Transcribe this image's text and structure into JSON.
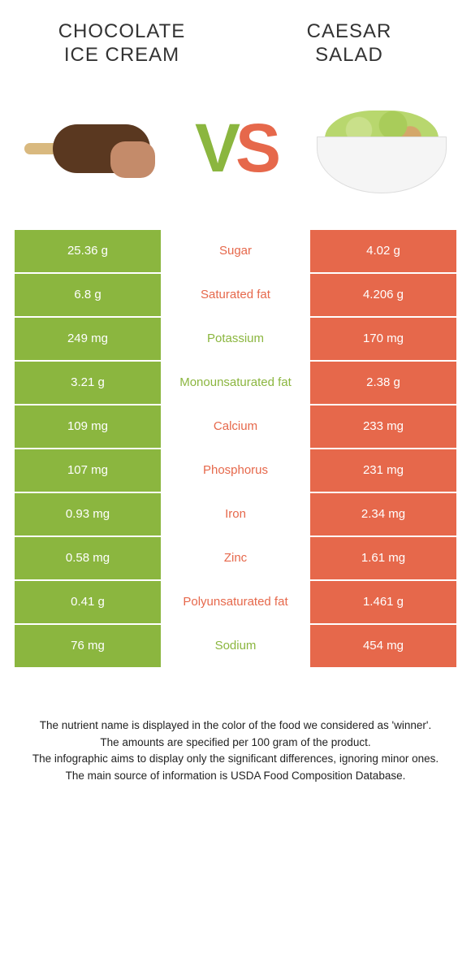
{
  "header": {
    "left_title_line1": "Chocolate",
    "left_title_line2": "ice cream",
    "right_title_line1": "Caesar",
    "right_title_line2": "salad"
  },
  "vs": {
    "v": "V",
    "s": "S"
  },
  "colors": {
    "green": "#8bb63f",
    "orange": "#e6684b"
  },
  "rows": [
    {
      "left": "25.36 g",
      "label": "Sugar",
      "winner": "orange",
      "right": "4.02 g"
    },
    {
      "left": "6.8 g",
      "label": "Saturated fat",
      "winner": "orange",
      "right": "4.206 g"
    },
    {
      "left": "249 mg",
      "label": "Potassium",
      "winner": "green",
      "right": "170 mg"
    },
    {
      "left": "3.21 g",
      "label": "Monounsaturated fat",
      "winner": "green",
      "right": "2.38 g"
    },
    {
      "left": "109 mg",
      "label": "Calcium",
      "winner": "orange",
      "right": "233 mg"
    },
    {
      "left": "107 mg",
      "label": "Phosphorus",
      "winner": "orange",
      "right": "231 mg"
    },
    {
      "left": "0.93 mg",
      "label": "Iron",
      "winner": "orange",
      "right": "2.34 mg"
    },
    {
      "left": "0.58 mg",
      "label": "Zinc",
      "winner": "orange",
      "right": "1.61 mg"
    },
    {
      "left": "0.41 g",
      "label": "Polyunsaturated fat",
      "winner": "orange",
      "right": "1.461 g"
    },
    {
      "left": "76 mg",
      "label": "Sodium",
      "winner": "green",
      "right": "454 mg"
    }
  ],
  "footer": {
    "line1": "The nutrient name is displayed in the color of the food we considered as 'winner'.",
    "line2": "The amounts are specified per 100 gram of the product.",
    "line3": "The infographic aims to display only the significant differences, ignoring minor ones.",
    "line4": "The main source of information is USDA Food Composition Database."
  }
}
